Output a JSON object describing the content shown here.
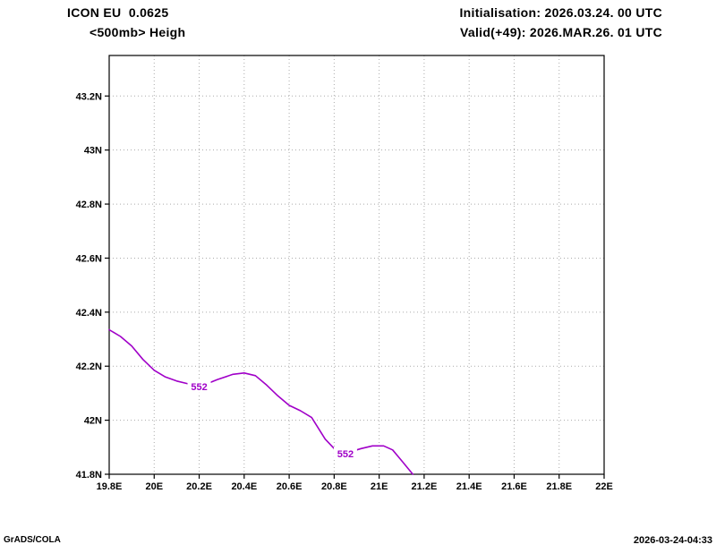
{
  "header": {
    "model": "ICON EU  0.0625",
    "field": "<500mb> Heigh",
    "init": "Initialisation: 2026.03.24. 00 UTC",
    "valid": "Valid(+49): 2026.MAR.26. 01 UTC"
  },
  "footer": {
    "left": "GrADS/COLA",
    "right": "2026-03-24-04:33"
  },
  "chart_data": {
    "type": "line",
    "title": "<500mb> Heigh",
    "xlabel": "",
    "ylabel": "",
    "xlim": [
      19.8,
      22.0
    ],
    "ylim": [
      41.8,
      43.35
    ],
    "grid": "dotted",
    "grid_color": "#aaaaaa",
    "frame_color": "#000000",
    "x_ticks": [
      {
        "value": 19.8,
        "label": "19.8E"
      },
      {
        "value": 20.0,
        "label": "20E"
      },
      {
        "value": 20.2,
        "label": "20.2E"
      },
      {
        "value": 20.4,
        "label": "20.4E"
      },
      {
        "value": 20.6,
        "label": "20.6E"
      },
      {
        "value": 20.8,
        "label": "20.8E"
      },
      {
        "value": 21.0,
        "label": "21E"
      },
      {
        "value": 21.2,
        "label": "21.2E"
      },
      {
        "value": 21.4,
        "label": "21.4E"
      },
      {
        "value": 21.6,
        "label": "21.6E"
      },
      {
        "value": 21.8,
        "label": "21.8E"
      },
      {
        "value": 22.0,
        "label": "22E"
      }
    ],
    "y_ticks": [
      {
        "value": 41.8,
        "label": "41.8N"
      },
      {
        "value": 42.0,
        "label": "42N"
      },
      {
        "value": 42.2,
        "label": "42.2N"
      },
      {
        "value": 42.4,
        "label": "42.4N"
      },
      {
        "value": 42.6,
        "label": "42.6N"
      },
      {
        "value": 42.8,
        "label": "42.8N"
      },
      {
        "value": 43.0,
        "label": "43N"
      },
      {
        "value": 43.2,
        "label": "43.2N"
      }
    ],
    "series": [
      {
        "name": "552 height contour",
        "color": "#a000c8",
        "points": [
          [
            19.8,
            42.335
          ],
          [
            19.85,
            42.31
          ],
          [
            19.9,
            42.275
          ],
          [
            19.95,
            42.225
          ],
          [
            20.0,
            42.185
          ],
          [
            20.05,
            42.16
          ],
          [
            20.1,
            42.145
          ],
          [
            20.15,
            42.135
          ],
          [
            20.22,
            42.13
          ],
          [
            20.28,
            42.15
          ],
          [
            20.35,
            42.17
          ],
          [
            20.4,
            42.175
          ],
          [
            20.45,
            42.165
          ],
          [
            20.5,
            42.13
          ],
          [
            20.55,
            42.09
          ],
          [
            20.6,
            42.055
          ],
          [
            20.65,
            42.035
          ],
          [
            20.7,
            42.01
          ],
          [
            20.73,
            41.97
          ],
          [
            20.76,
            41.93
          ],
          [
            20.8,
            41.895
          ],
          [
            20.86,
            41.88
          ],
          [
            20.92,
            41.895
          ],
          [
            20.97,
            41.905
          ],
          [
            21.02,
            41.905
          ],
          [
            21.06,
            41.89
          ],
          [
            21.1,
            41.85
          ],
          [
            21.13,
            41.82
          ],
          [
            21.15,
            41.8
          ]
        ]
      }
    ],
    "contour_labels": [
      {
        "text": "552",
        "lon": 20.2,
        "lat": 42.125
      },
      {
        "text": "552",
        "lon": 20.85,
        "lat": 41.876
      }
    ]
  }
}
